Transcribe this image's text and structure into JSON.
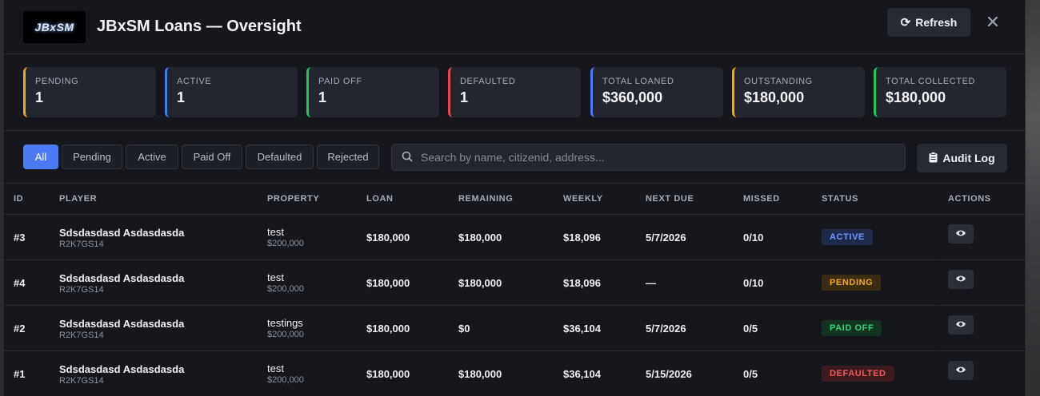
{
  "header": {
    "logo_text": "JBxSM",
    "title": "JBxSM Loans — Oversight",
    "refresh_label": "Refresh",
    "close_glyph": "✕"
  },
  "stats": [
    {
      "label": "PENDING",
      "value": "1",
      "color": "#f2a623"
    },
    {
      "label": "ACTIVE",
      "value": "1",
      "color": "#4b7bf2"
    },
    {
      "label": "PAID OFF",
      "value": "1",
      "color": "#22c55e"
    },
    {
      "label": "DEFAULTED",
      "value": "1",
      "color": "#e5484d"
    },
    {
      "label": "TOTAL LOANED",
      "value": "$360,000",
      "color": "#4b7bf2"
    },
    {
      "label": "OUTSTANDING",
      "value": "$180,000",
      "color": "#f2a623"
    },
    {
      "label": "TOTAL COLLECTED",
      "value": "$180,000",
      "color": "#22c55e"
    }
  ],
  "filters": [
    "All",
    "Pending",
    "Active",
    "Paid Off",
    "Defaulted",
    "Rejected"
  ],
  "active_filter": "All",
  "search": {
    "placeholder": "Search by name, citizenid, address...",
    "value": ""
  },
  "audit_label": "Audit Log",
  "columns": [
    "ID",
    "PLAYER",
    "PROPERTY",
    "LOAN",
    "REMAINING",
    "WEEKLY",
    "NEXT DUE",
    "MISSED",
    "STATUS",
    "ACTIONS"
  ],
  "rows": [
    {
      "id": "#3",
      "player": "Sdsdasdasd Asdasdasda",
      "citizenid": "R2K7GS14",
      "property": "test",
      "price": "$200,000",
      "loan": "$180,000",
      "remaining": "$180,000",
      "weekly": "$18,096",
      "next_due": "5/7/2026",
      "missed": "0/10",
      "status": "ACTIVE"
    },
    {
      "id": "#4",
      "player": "Sdsdasdasd Asdasdasda",
      "citizenid": "R2K7GS14",
      "property": "test",
      "price": "$200,000",
      "loan": "$180,000",
      "remaining": "$180,000",
      "weekly": "$18,096",
      "next_due": "—",
      "missed": "0/10",
      "status": "PENDING"
    },
    {
      "id": "#2",
      "player": "Sdsdasdasd Asdasdasda",
      "citizenid": "R2K7GS14",
      "property": "testings",
      "price": "$200,000",
      "loan": "$180,000",
      "remaining": "$0",
      "weekly": "$36,104",
      "next_due": "5/7/2026",
      "missed": "0/5",
      "status": "PAID OFF"
    },
    {
      "id": "#1",
      "player": "Sdsdasdasd Asdasdasda",
      "citizenid": "R2K7GS14",
      "property": "test",
      "price": "$200,000",
      "loan": "$180,000",
      "remaining": "$180,000",
      "weekly": "$36,104",
      "next_due": "5/15/2026",
      "missed": "0/5",
      "status": "DEFAULTED"
    }
  ],
  "status_styles": {
    "ACTIVE": {
      "bg": "#1e2a4a",
      "fg": "#6f9bff"
    },
    "PENDING": {
      "bg": "#3a2c12",
      "fg": "#f2a623"
    },
    "PAID OFF": {
      "bg": "#133321",
      "fg": "#34d27a"
    },
    "DEFAULTED": {
      "bg": "#3d1a1d",
      "fg": "#ef5a5f"
    }
  }
}
